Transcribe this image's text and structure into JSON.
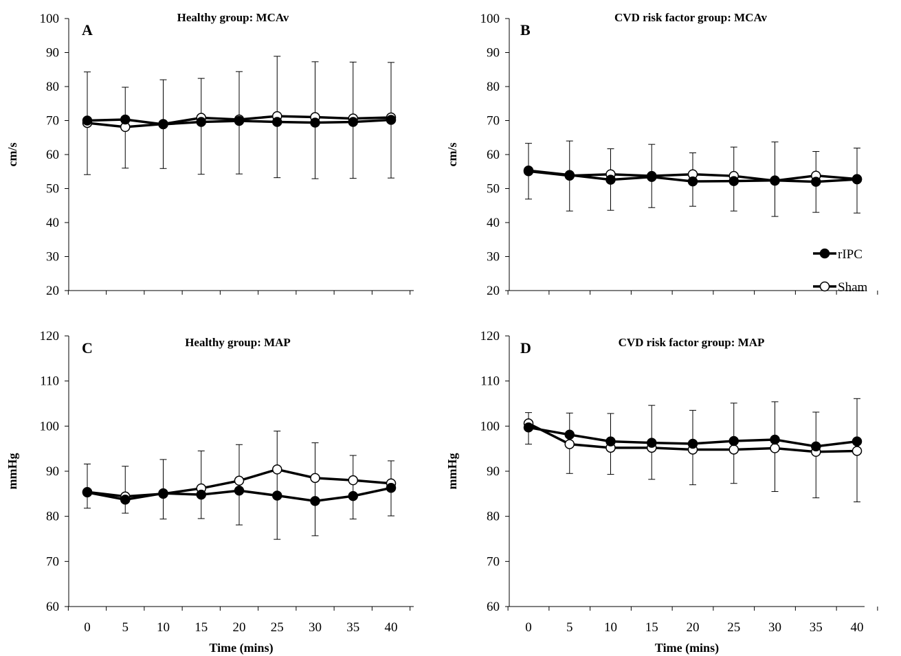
{
  "chart_data": [
    {
      "type": "line",
      "panel": "A",
      "title": "Healthy group: MCAv",
      "xlabel": "",
      "ylabel": "cm/s",
      "x": [
        0,
        5,
        10,
        15,
        20,
        25,
        30,
        35,
        40
      ],
      "xticks": [],
      "ylim": [
        20,
        100
      ],
      "yticks": [
        "20",
        "30",
        "40",
        "50",
        "60",
        "70",
        "80",
        "90",
        "100"
      ],
      "series": [
        {
          "name": "rIPC",
          "marker": "filled-circle",
          "values": [
            70.0,
            70.3,
            68.9,
            69.6,
            69.9,
            69.6,
            69.4,
            69.6,
            70.2
          ]
        },
        {
          "name": "Sham",
          "marker": "open-circle",
          "values": [
            69.3,
            68.1,
            69.0,
            70.8,
            70.3,
            71.3,
            71.0,
            70.6,
            70.9
          ],
          "error_upper": [
            84.3,
            79.8,
            82.0,
            82.4,
            84.4,
            88.9,
            87.3,
            87.2,
            87.1
          ],
          "error_lower": [
            54.1,
            56.0,
            55.9,
            54.2,
            54.3,
            53.2,
            52.9,
            53.0,
            53.1
          ]
        }
      ]
    },
    {
      "type": "line",
      "panel": "B",
      "title": "CVD risk factor group:  MCAv",
      "xlabel": "",
      "ylabel": "cm/s",
      "x": [
        0,
        5,
        10,
        15,
        20,
        25,
        30,
        35,
        40
      ],
      "xticks": [],
      "ylim": [
        20,
        100
      ],
      "yticks": [
        "20",
        "30",
        "40",
        "50",
        "60",
        "70",
        "80",
        "90",
        "100"
      ],
      "series": [
        {
          "name": "rIPC",
          "marker": "filled-circle",
          "values": [
            55.3,
            54.0,
            52.6,
            53.4,
            52.1,
            52.2,
            52.4,
            52.0,
            52.7
          ]
        },
        {
          "name": "Sham",
          "marker": "open-circle",
          "values": [
            55.1,
            53.8,
            54.2,
            53.7,
            54.2,
            53.7,
            52.3,
            53.8,
            52.8
          ],
          "error_upper": [
            63.3,
            64.0,
            61.7,
            63.0,
            60.5,
            62.2,
            63.7,
            60.9,
            61.9
          ],
          "error_lower": [
            46.9,
            43.4,
            43.6,
            44.4,
            44.8,
            43.4,
            41.8,
            43.0,
            42.8
          ]
        }
      ],
      "legend": {
        "position": "right",
        "entries": [
          "rIPC",
          "Sham"
        ]
      }
    },
    {
      "type": "line",
      "panel": "C",
      "title": "Healthy group: MAP",
      "xlabel": "Time (mins)",
      "ylabel": "mmHg",
      "x": [
        0,
        5,
        10,
        15,
        20,
        25,
        30,
        35,
        40
      ],
      "xticks": [
        "0",
        "5",
        "10",
        "15",
        "20",
        "25",
        "30",
        "35",
        "40"
      ],
      "ylim": [
        60,
        120
      ],
      "yticks": [
        "60",
        "70",
        "80",
        "90",
        "100",
        "110",
        "120"
      ],
      "series": [
        {
          "name": "rIPC",
          "marker": "filled-circle",
          "values": [
            85.3,
            83.7,
            85.1,
            84.8,
            85.7,
            84.6,
            83.4,
            84.5,
            86.3
          ]
        },
        {
          "name": "Sham",
          "marker": "open-circle",
          "values": [
            85.4,
            84.4,
            85.0,
            86.2,
            87.9,
            90.4,
            88.5,
            88.0,
            87.3
          ],
          "error_upper": [
            91.6,
            91.1,
            92.6,
            94.5,
            95.9,
            98.9,
            96.3,
            93.5,
            92.3
          ],
          "error_lower": [
            81.8,
            80.7,
            79.4,
            79.5,
            78.1,
            74.9,
            75.7,
            79.4,
            80.1
          ]
        }
      ]
    },
    {
      "type": "line",
      "panel": "D",
      "title": "CVD risk factor group: MAP",
      "xlabel": "Time (mins)",
      "ylabel": "mmHg",
      "x": [
        0,
        5,
        10,
        15,
        20,
        25,
        30,
        35,
        40
      ],
      "xticks": [
        "0",
        "5",
        "10",
        "15",
        "20",
        "25",
        "30",
        "35",
        "40"
      ],
      "ylim": [
        60,
        120
      ],
      "yticks": [
        "60",
        "70",
        "80",
        "90",
        "100",
        "110",
        "120"
      ],
      "series": [
        {
          "name": "rIPC",
          "marker": "filled-circle",
          "values": [
            99.7,
            98.1,
            96.6,
            96.3,
            96.1,
            96.7,
            97.0,
            95.5,
            96.6
          ]
        },
        {
          "name": "Sham",
          "marker": "open-circle",
          "values": [
            100.6,
            96.0,
            95.2,
            95.2,
            94.8,
            94.8,
            95.1,
            94.3,
            94.5
          ],
          "error_upper": [
            103.0,
            102.9,
            102.8,
            104.6,
            103.5,
            105.1,
            105.4,
            103.1,
            106.1
          ],
          "error_lower": [
            96.0,
            89.5,
            89.3,
            88.2,
            87.0,
            87.3,
            85.5,
            84.1,
            83.2
          ]
        }
      ]
    }
  ]
}
